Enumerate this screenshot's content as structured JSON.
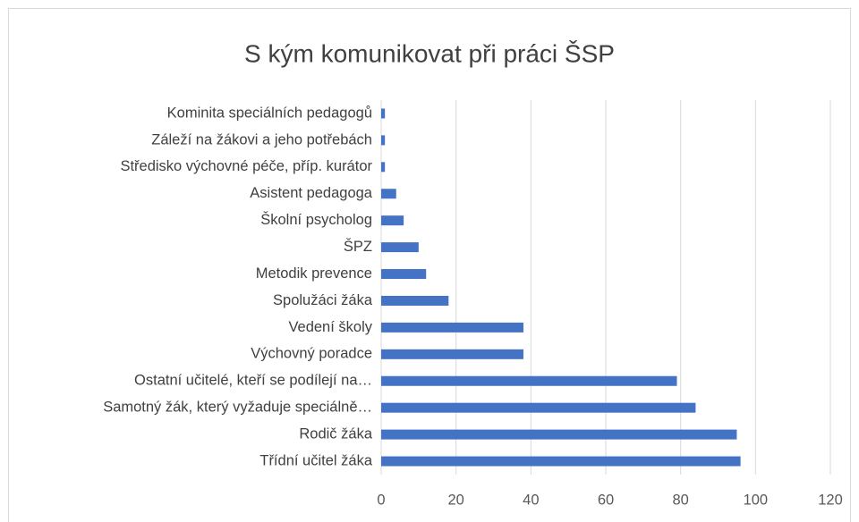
{
  "chart_data": {
    "type": "hbar",
    "title": "S kým komunikovat při práci ŠSP",
    "categories": [
      "Kominita speciálních pedagogů",
      "Záleží na žákovi a jeho potřebách",
      "Středisko výchovné péče, příp. kurátor",
      "Asistent pedagoga",
      "Školní psycholog",
      "ŠPZ",
      "Metodik prevence",
      "Spolužáci žáka",
      "Vedení školy",
      "Výchovný poradce",
      "Ostatní učitelé, kteří se podílejí na…",
      "Samotný žák, který vyžaduje speciálně…",
      "Rodič žáka",
      "Třídní učitel žáka"
    ],
    "values": [
      1,
      1,
      1,
      4,
      6,
      10,
      12,
      18,
      38,
      38,
      79,
      84,
      95,
      96
    ],
    "color": "#4472c4",
    "xlim": [
      0,
      120
    ],
    "xticks": [
      0,
      20,
      40,
      60,
      80,
      100,
      120
    ],
    "grid": true
  }
}
